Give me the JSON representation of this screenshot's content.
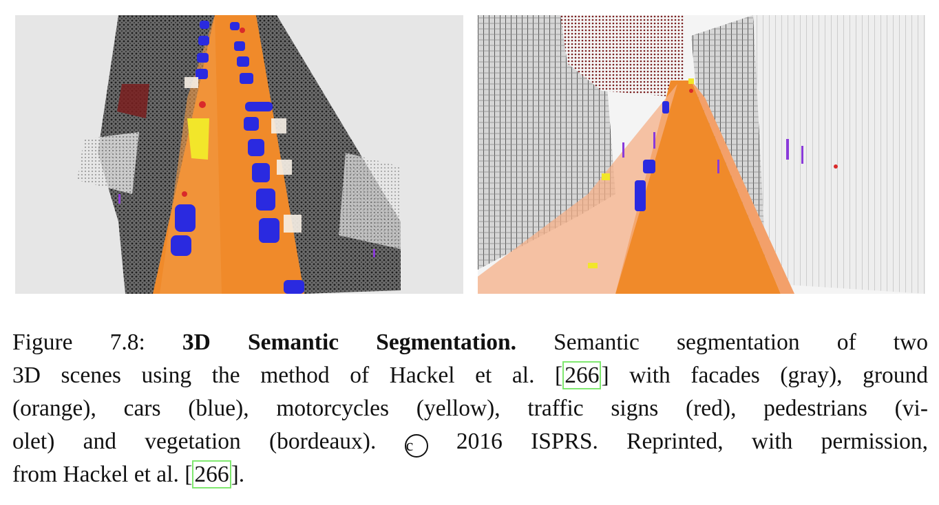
{
  "figure": {
    "panels": [
      {
        "name": "left-scene",
        "background": "#e6e6e6"
      },
      {
        "name": "right-scene",
        "background": "#f4f4f4"
      }
    ],
    "colors": {
      "facades": "#3a3a3a",
      "ground": "#f08a2a",
      "cars": "#2a2ae0",
      "motorcycles": "#f2e62a",
      "traffic_signs": "#d92a2a",
      "pedestrians": "#8a3ad9",
      "vegetation": "#7a1f1f"
    }
  },
  "caption": {
    "figure_label": "Figure 7.8:",
    "title": "3D Semantic Segmentation.",
    "line1_rest": "Semantic segmentation of two",
    "line2_a": "3D scenes using the method of Hackel et al.",
    "cite": "266",
    "line2_b": "with facades (gray), ground",
    "line3": "(orange), cars (blue), motorcycles (yellow), traffic signs (red), pedestrians (vi-",
    "line4_a": "olet) and vegetation (bordeaux).",
    "copyright_symbol": "c",
    "line4_b": "2016 ISPRS. Reprinted, with permission,",
    "line5_a": "from Hackel et al.",
    "line5_b": "."
  }
}
